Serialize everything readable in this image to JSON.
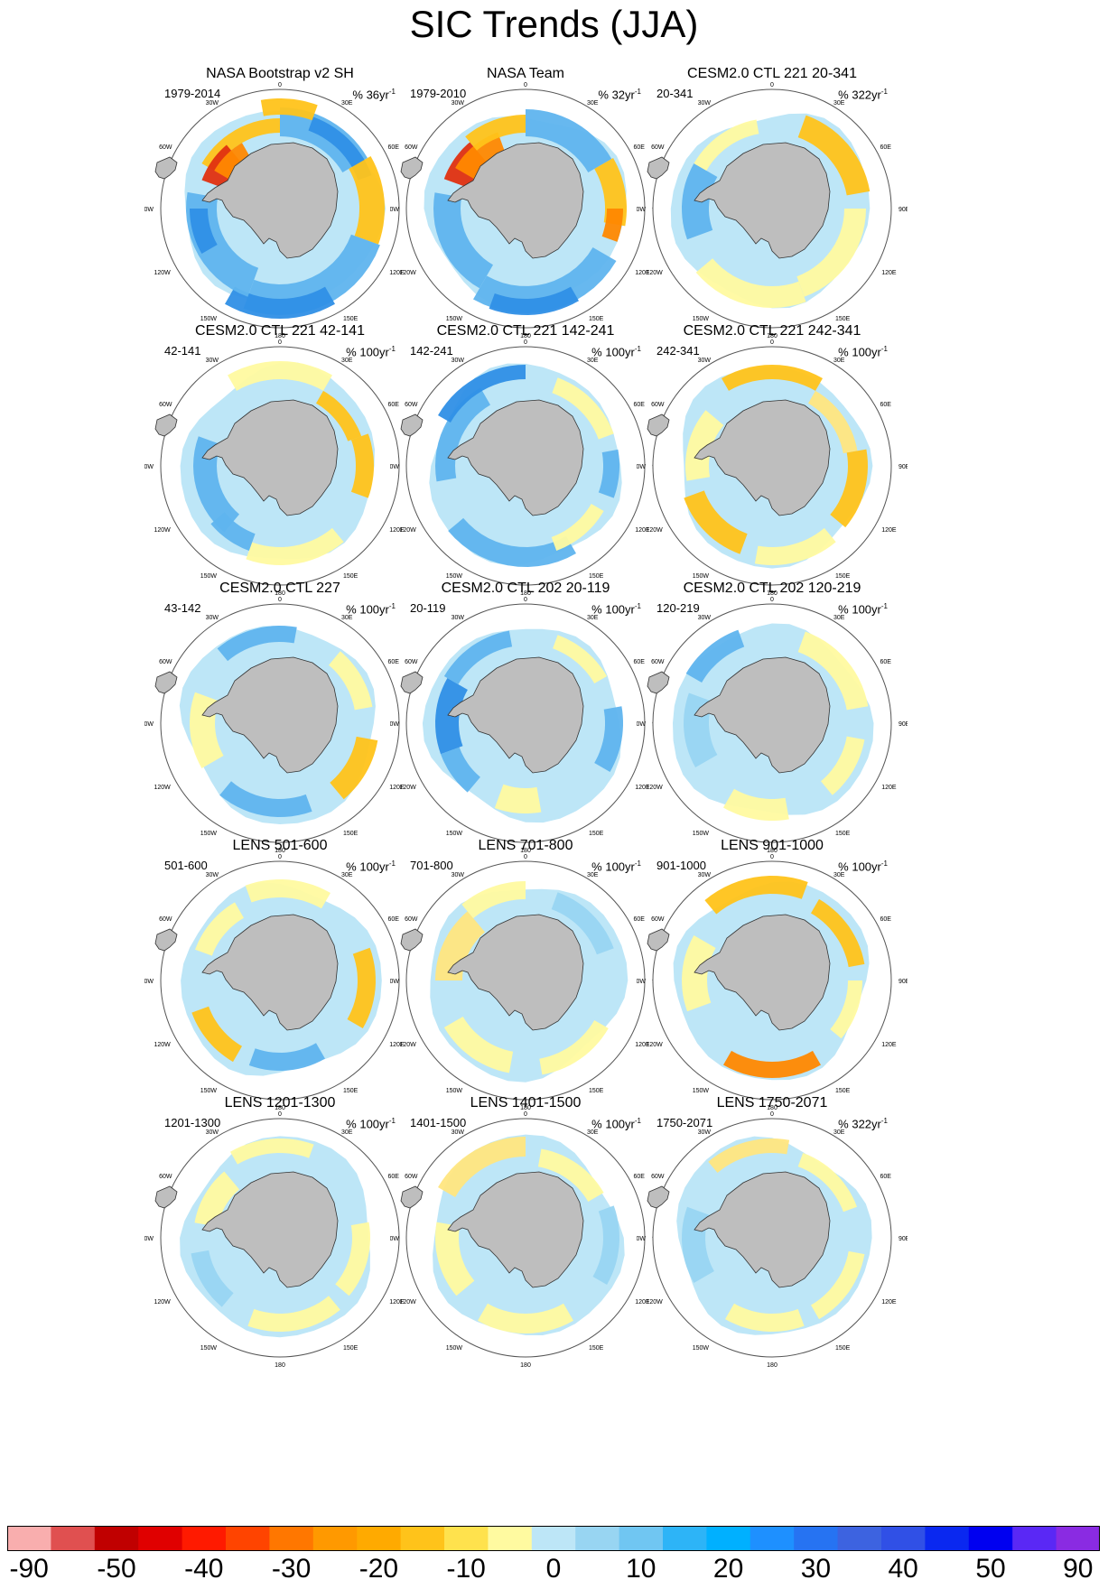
{
  "title": "SIC Trends (JJA)",
  "lon_labels": [
    "0",
    "30E",
    "60E",
    "90E",
    "120E",
    "150E",
    "180",
    "150W",
    "120W",
    "90W",
    "60W",
    "30W"
  ],
  "panels": [
    {
      "title": "NASA Bootstrap v2 SH",
      "period": "1979-2014",
      "units": "% 36yr",
      "exponent": "-1",
      "mode": "obs1"
    },
    {
      "title": "NASA Team",
      "period": "1979-2010",
      "units": "% 32yr",
      "exponent": "-1",
      "mode": "obs2"
    },
    {
      "title": "CESM2.0 CTL 221 20-341",
      "period": "20-341",
      "units": "% 322yr",
      "exponent": "-1",
      "mode": "m1"
    },
    {
      "title": "CESM2.0 CTL 221 42-141",
      "period": "42-141",
      "units": "% 100yr",
      "exponent": "-1",
      "mode": "m2"
    },
    {
      "title": "CESM2.0 CTL 221 142-241",
      "period": "142-241",
      "units": "% 100yr",
      "exponent": "-1",
      "mode": "m3"
    },
    {
      "title": "CESM2.0 CTL 221 242-341",
      "period": "242-341",
      "units": "% 100yr",
      "exponent": "-1",
      "mode": "m4"
    },
    {
      "title": "CESM2.0 CTL 227",
      "period": "43-142",
      "units": "% 100yr",
      "exponent": "-1",
      "mode": "m5"
    },
    {
      "title": "CESM2.0 CTL 202 20-119",
      "period": "20-119",
      "units": "% 100yr",
      "exponent": "-1",
      "mode": "m6"
    },
    {
      "title": "CESM2.0 CTL 202 120-219",
      "period": "120-219",
      "units": "% 100yr",
      "exponent": "-1",
      "mode": "m7"
    },
    {
      "title": "LENS 501-600",
      "period": "501-600",
      "units": "% 100yr",
      "exponent": "-1",
      "mode": "m8"
    },
    {
      "title": "LENS 701-800",
      "period": "701-800",
      "units": "% 100yr",
      "exponent": "-1",
      "mode": "m9"
    },
    {
      "title": "LENS 901-1000",
      "period": "901-1000",
      "units": "% 100yr",
      "exponent": "-1",
      "mode": "m10"
    },
    {
      "title": "LENS 1201-1300",
      "period": "1201-1300",
      "units": "% 100yr",
      "exponent": "-1",
      "mode": "m11"
    },
    {
      "title": "LENS 1401-1500",
      "period": "1401-1500",
      "units": "% 100yr",
      "exponent": "-1",
      "mode": "m12"
    },
    {
      "title": "LENS 1750-2071",
      "period": "1750-2071",
      "units": "% 322yr",
      "exponent": "-1",
      "mode": "m13"
    }
  ],
  "colorbar": {
    "colors": [
      "#f9aeae",
      "#e05050",
      "#c00000",
      "#e00000",
      "#ff1a00",
      "#ff4400",
      "#ff7700",
      "#ff9900",
      "#ffaa00",
      "#ffc31a",
      "#ffe24d",
      "#fffaa0",
      "#bde6f7",
      "#98d5f2",
      "#70c6f2",
      "#2db4f7",
      "#00b0ff",
      "#1e90ff",
      "#2673f2",
      "#3d63e0",
      "#3050e6",
      "#0a28f0",
      "#0000f0",
      "#5a28f5",
      "#8a2be2"
    ],
    "labels": [
      "-90",
      "-50",
      "-40",
      "-30",
      "-20",
      "-10",
      "0",
      "10",
      "20",
      "30",
      "40",
      "50",
      "90"
    ]
  }
}
